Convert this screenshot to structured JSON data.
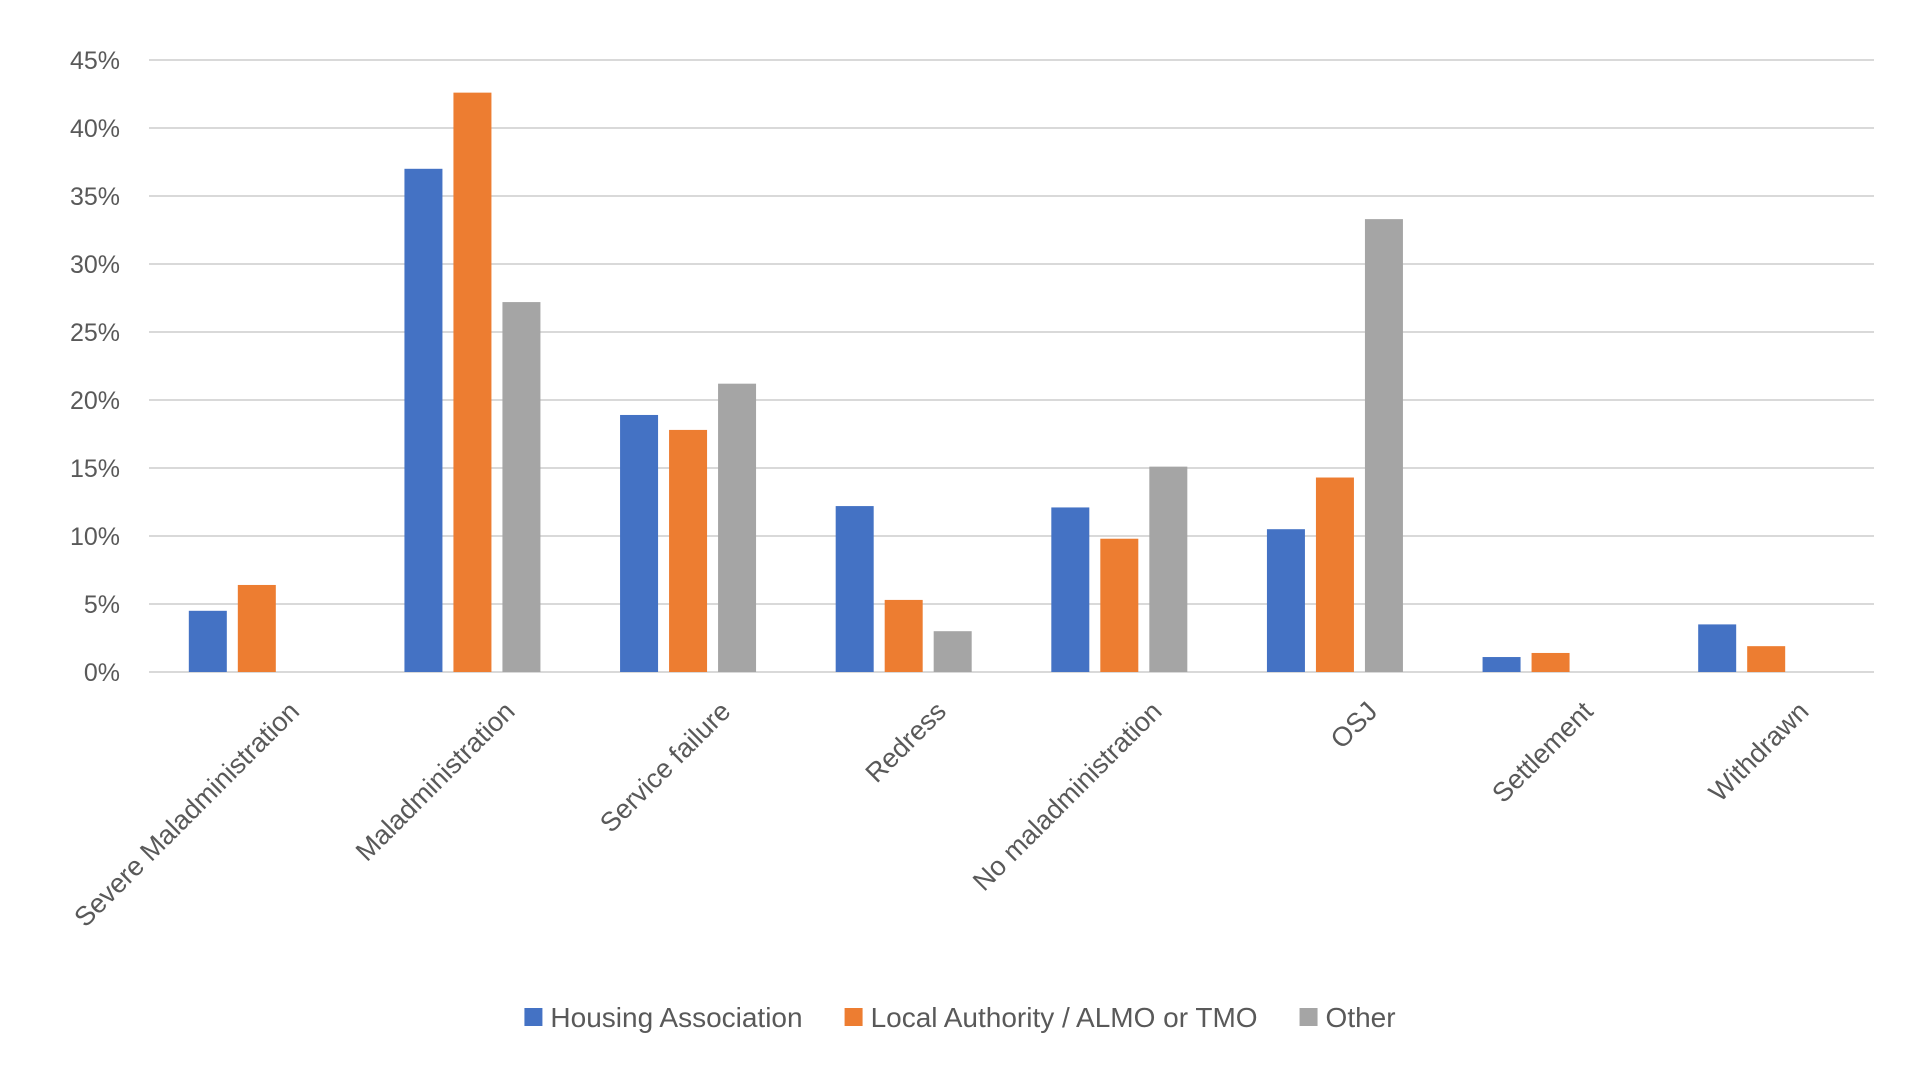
{
  "chart_data": {
    "type": "bar",
    "title": "",
    "xlabel": "",
    "ylabel": "",
    "categories": [
      "Severe Maladministration",
      "Maladministration",
      "Service failure",
      "Redress",
      "No maladministration",
      "OSJ",
      "Settlement",
      "Withdrawn"
    ],
    "series": [
      {
        "name": "Housing Association",
        "color": "#4472c4",
        "values": [
          4.5,
          37.0,
          18.9,
          12.2,
          12.1,
          10.5,
          1.1,
          3.5
        ]
      },
      {
        "name": "Local Authority / ALMO or TMO",
        "color": "#ed7d31",
        "values": [
          6.4,
          42.6,
          17.8,
          5.3,
          9.8,
          14.3,
          1.4,
          1.9
        ]
      },
      {
        "name": "Other",
        "color": "#a5a5a5",
        "values": [
          0,
          27.2,
          21.2,
          3.0,
          15.1,
          33.3,
          0,
          0
        ]
      }
    ],
    "ylim": [
      0,
      45
    ],
    "yticks": [
      0,
      5,
      10,
      15,
      20,
      25,
      30,
      35,
      40,
      45
    ],
    "ytick_labels": [
      "0%",
      "5%",
      "10%",
      "15%",
      "20%",
      "25%",
      "30%",
      "35%",
      "40%",
      "45%"
    ],
    "grid": true,
    "legend_position": "bottom"
  }
}
